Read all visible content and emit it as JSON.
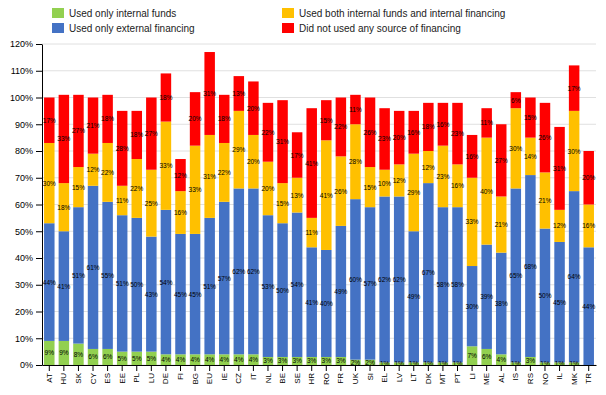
{
  "chart_data": {
    "type": "bar",
    "stacked": true,
    "data_labels": true,
    "grid": true,
    "legend": "top",
    "categories": [
      "AT",
      "HU",
      "SK",
      "CY",
      "ES",
      "EE",
      "PL",
      "LU",
      "DE",
      "FI",
      "BG",
      "EU",
      "IE",
      "CZ",
      "IT",
      "NL",
      "BE",
      "SE",
      "HR",
      "RO",
      "FR",
      "UK",
      "SI",
      "EL",
      "LV",
      "LT",
      "DK",
      "MT",
      "PT",
      "LI",
      "ME",
      "AL",
      "IS",
      "RS",
      "NO",
      "IL",
      "MK",
      "TR"
    ],
    "series": [
      {
        "name": "Used only internal funds",
        "color": "#92d050",
        "values": [
          9,
          9,
          8,
          6,
          6,
          5,
          5,
          5,
          4,
          4,
          4,
          4,
          4,
          4,
          4,
          3,
          3,
          3,
          3,
          3,
          3,
          2,
          2,
          1,
          1,
          1,
          1,
          1,
          1,
          7,
          6,
          4,
          1,
          3,
          1,
          1,
          1,
          0
        ],
        "value_labels": [
          "9%",
          "9%",
          "8%",
          "6%",
          "6%",
          "5%",
          "5%",
          "5%",
          "4%",
          "4%",
          "4%",
          "4%",
          "4%",
          "4%",
          "4%",
          "3%",
          "3%",
          "3%",
          "3%",
          "3%",
          "3%",
          "2%",
          "2%",
          "1%",
          "1%",
          "1%",
          "1%",
          "1%",
          "1%",
          "7%",
          "6%",
          "4%",
          "1%",
          "3%",
          "1%",
          "1%",
          "1%",
          null
        ]
      },
      {
        "name": "Used only external financing",
        "color": "#4472c4",
        "values": [
          44,
          41,
          51,
          61,
          55,
          51,
          50,
          43,
          54,
          45,
          45,
          51,
          57,
          62,
          62,
          53,
          50,
          54,
          41,
          40,
          49,
          60,
          57,
          62,
          62,
          49,
          67,
          58,
          58,
          30,
          39,
          38,
          65,
          68,
          50,
          45,
          64,
          44
        ],
        "value_labels": [
          "44%",
          "41%",
          "51%",
          "61%",
          "55%",
          "51%",
          "50%",
          "43%",
          "54%",
          "45%",
          "45%",
          "51%",
          "57%",
          "62%",
          "62%",
          "53%",
          "50%",
          "54%",
          "41%",
          "40%",
          "49%",
          "60%",
          "57%",
          "62%",
          "62%",
          "49%",
          "67%",
          "58%",
          "58%",
          "30%",
          "39%",
          "38%",
          "65%",
          "68%",
          "50%",
          "45%",
          "64%",
          "44%"
        ]
      },
      {
        "name": "Used both internal funds and internal financing",
        "color": "#ffc000",
        "values": [
          30,
          18,
          15,
          12,
          22,
          11,
          22,
          25,
          33,
          16,
          33,
          31,
          22,
          29,
          20,
          20,
          15,
          13,
          11,
          41,
          26,
          28,
          15,
          10,
          12,
          29,
          12,
          23,
          16,
          33,
          40,
          21,
          30,
          14,
          21,
          12,
          30,
          16
        ],
        "value_labels": [
          "30%",
          "18%",
          "15%",
          "12%",
          "22%",
          "11%",
          "22%",
          "25%",
          "33%",
          "16%",
          "33%",
          "31%",
          "22%",
          "29%",
          "20%",
          "20%",
          "15%",
          "13%",
          "11%",
          "41%",
          "26%",
          "28%",
          "15%",
          "10%",
          "12%",
          "29%",
          "12%",
          "23%",
          "16%",
          "33%",
          "40%",
          "21%",
          "30%",
          "14%",
          "21%",
          "12%",
          "30%",
          "16%"
        ]
      },
      {
        "name": "Did not used any source of financing",
        "color": "#ff0000",
        "values": [
          17,
          33,
          27,
          21,
          18,
          28,
          18,
          27,
          18,
          12,
          20,
          31,
          18,
          13,
          20,
          22,
          31,
          17,
          41,
          15,
          22,
          11,
          26,
          23,
          20,
          16,
          18,
          16,
          23,
          16,
          11,
          27,
          6,
          15,
          26,
          31,
          17,
          20
        ],
        "value_labels": [
          "17%",
          "33%",
          "27%",
          "21%",
          "18%",
          "28%",
          "18%",
          "27%",
          "18%",
          "12%",
          "20%",
          "31%",
          "18%",
          "13%",
          "20%",
          "22%",
          "31%",
          "17%",
          "41%",
          "15%",
          "22%",
          "11%",
          "26%",
          "23%",
          "20%",
          "16%",
          "18%",
          "16%",
          "23%",
          "16%",
          "11%",
          "27%",
          "6%",
          "15%",
          "26%",
          "31%",
          "17%",
          "20%"
        ]
      }
    ],
    "ylim": [
      0,
      120
    ],
    "yticks": [
      {
        "value": 0,
        "label": "0%"
      },
      {
        "value": 10,
        "label": "10%"
      },
      {
        "value": 20,
        "label": "20%"
      },
      {
        "value": 30,
        "label": "30%"
      },
      {
        "value": 40,
        "label": "40%"
      },
      {
        "value": 50,
        "label": "50%"
      },
      {
        "value": 60,
        "label": "60%"
      },
      {
        "value": 70,
        "label": "70%"
      },
      {
        "value": 80,
        "label": "80%"
      },
      {
        "value": 90,
        "label": "90%"
      },
      {
        "value": 100,
        "label": "100%"
      },
      {
        "value": 110,
        "label": "110%"
      },
      {
        "value": 120,
        "label": "120%"
      }
    ]
  }
}
